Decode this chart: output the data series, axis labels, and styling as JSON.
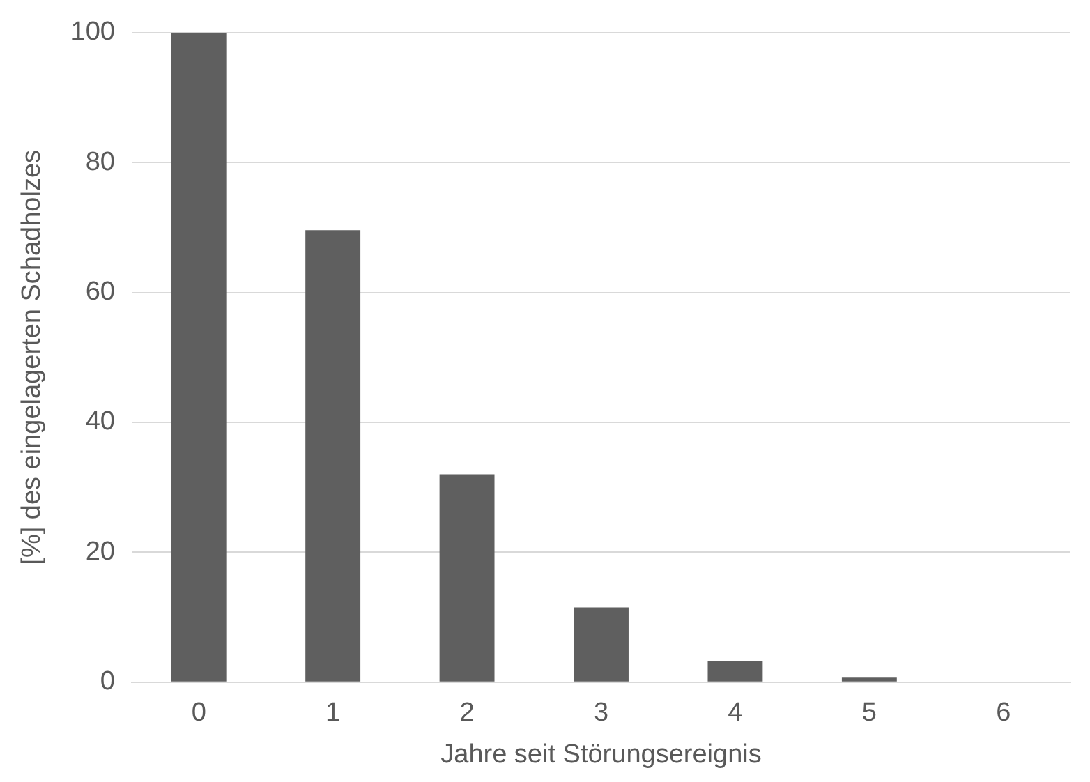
{
  "chart_data": {
    "type": "bar",
    "xlabel": "Jahre seit Störungsereignis",
    "ylabel": "[%] des eingelagerten Schadholzes",
    "categories": [
      "0",
      "1",
      "2",
      "3",
      "4",
      "5",
      "6"
    ],
    "values": [
      100,
      69.6,
      32,
      11.5,
      3.3,
      0.7,
      0
    ],
    "color": "#5f5f5f",
    "ylim": [
      0,
      100
    ],
    "yticks": [
      0,
      20,
      40,
      60,
      80,
      100
    ],
    "grid": "y",
    "legend": false
  }
}
